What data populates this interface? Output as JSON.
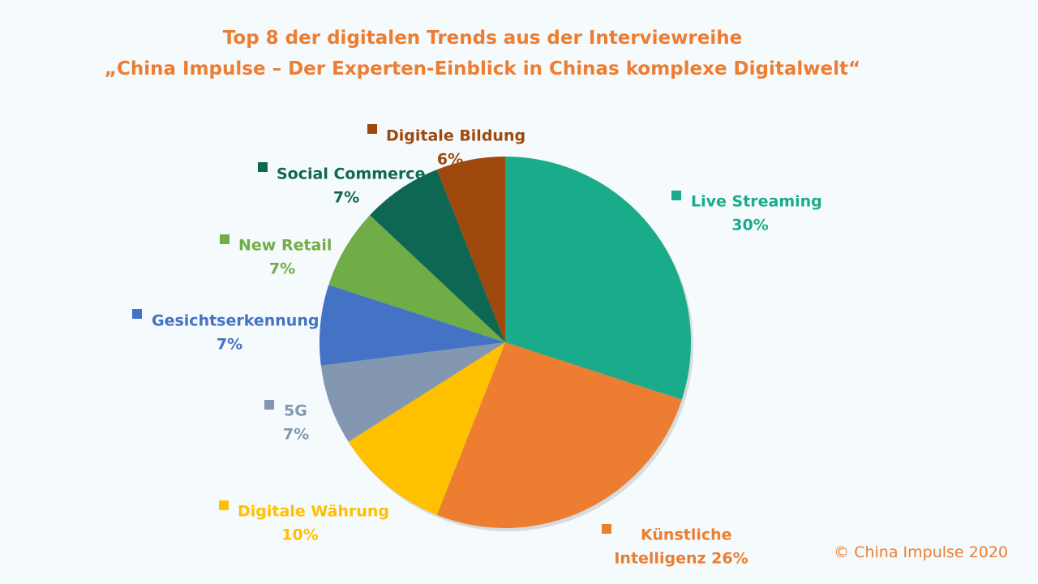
{
  "title": {
    "line1": "Top 8 der digitalen Trends aus der Interviewreihe",
    "line2": "„China Impulse – Der Experten-Einblick in Chinas komplexe Digitalwelt“"
  },
  "copyright": "© China Impulse 2020",
  "chart_data": {
    "type": "pie",
    "title": "Top 8 der digitalen Trends aus der Interviewreihe „China Impulse – Der Experten-Einblick in Chinas komplexe Digitalwelt“",
    "legend": "none",
    "slices": [
      {
        "name": "Live Streaming",
        "label_lines": [
          "Live Streaming",
          "30%"
        ],
        "value": 30,
        "color": "#1aab8a"
      },
      {
        "name": "Künstliche Intelligenz",
        "label_lines": [
          "Künstliche",
          "Intelligenz 26%"
        ],
        "value": 26,
        "color": "#ed7d31"
      },
      {
        "name": "Digitale Währung",
        "label_lines": [
          "Digitale Währung",
          "10%"
        ],
        "value": 10,
        "color": "#ffc000"
      },
      {
        "name": "5G",
        "label_lines": [
          "5G",
          "7%"
        ],
        "value": 7,
        "color": "#8497b0"
      },
      {
        "name": "Gesichtserkennung",
        "label_lines": [
          "Gesichtserkennung",
          "7%"
        ],
        "value": 7,
        "color": "#4472c4"
      },
      {
        "name": "New Retail",
        "label_lines": [
          "New Retail",
          "7%"
        ],
        "value": 7,
        "color": "#70ad47"
      },
      {
        "name": "Social Commerce",
        "label_lines": [
          "Social Commerce",
          "7%"
        ],
        "value": 7,
        "color": "#0d6753"
      },
      {
        "name": "Digitale Bildung",
        "label_lines": [
          "Digitale Bildung",
          "6%"
        ],
        "value": 6,
        "color": "#9e480e"
      }
    ]
  }
}
